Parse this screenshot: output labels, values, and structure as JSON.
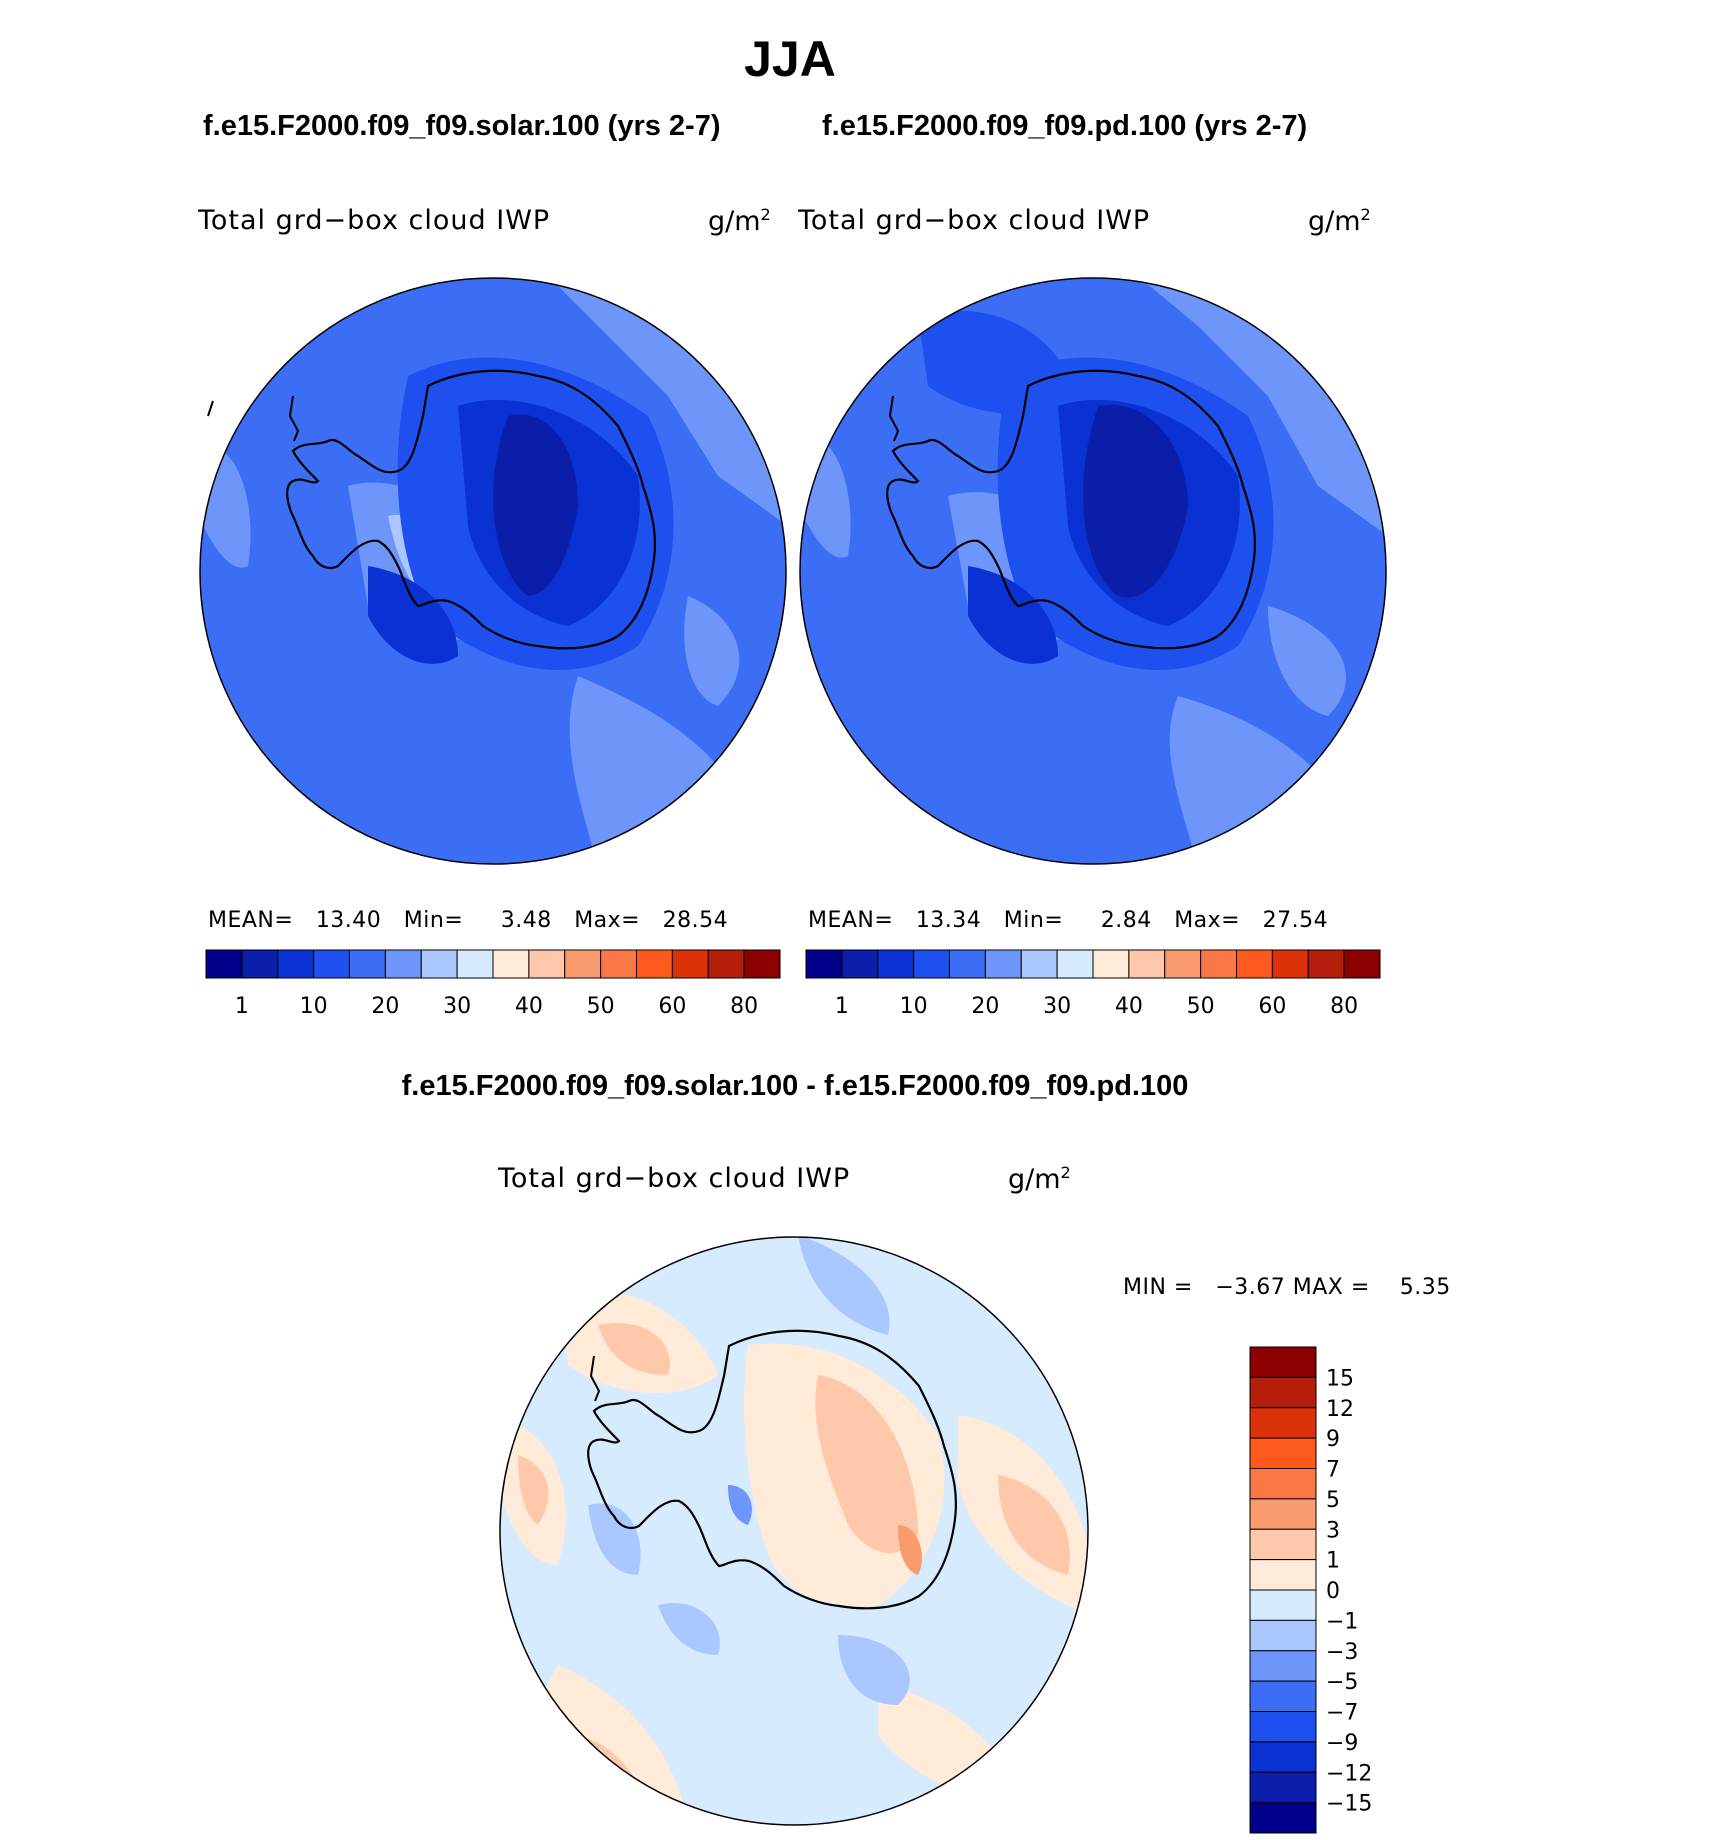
{
  "title": "JJA",
  "panels": [
    {
      "case": "f.e15.F2000.f09_f09.solar.100 (yrs 2-7)",
      "variable": "Total grd−box cloud IWP",
      "units": "g/m",
      "units_exp": "2",
      "stats": {
        "mean_label": "MEAN=",
        "mean": "13.40",
        "min_label": "Min=",
        "min": "3.48",
        "max_label": "Max=",
        "max": "28.54"
      }
    },
    {
      "case": "f.e15.F2000.f09_f09.pd.100 (yrs 2-7)",
      "variable": "Total grd−box cloud IWP",
      "units": "g/m",
      "units_exp": "2",
      "stats": {
        "mean_label": "MEAN=",
        "mean": "13.34",
        "min_label": "Min=",
        "min": "2.84",
        "max_label": "Max=",
        "max": "27.54"
      }
    }
  ],
  "diff": {
    "title": "f.e15.F2000.f09_f09.solar.100 - f.e15.F2000.f09_f09.pd.100",
    "variable": "Total grd−box cloud IWP",
    "units": "g/m",
    "units_exp": "2",
    "stats": {
      "min_label": "MIN =",
      "min": "−3.67",
      "max_label": "MAX =",
      "max": "5.35"
    }
  },
  "chart_data": [
    {
      "type": "heatmap",
      "projection": "south polar stereographic",
      "title": "f.e15.F2000.f09_f09.solar.100 (yrs 2-7)",
      "variable": "Total grd−box cloud IWP",
      "units": "g/m^2",
      "colorbar_levels": [
        1,
        10,
        20,
        30,
        40,
        50,
        60,
        80
      ],
      "colorbar_colors": [
        "#00008b",
        "#0a1eaa",
        "#0a32d2",
        "#1e50f0",
        "#3c6ef5",
        "#6e96fa",
        "#aac8ff",
        "#d7ebff",
        "#ffebd7",
        "#ffc8aa",
        "#fa9b6e",
        "#fa7846",
        "#ff5a1e",
        "#dc320a",
        "#b41e0a",
        "#8c0000"
      ],
      "mean": 13.4,
      "min": 3.48,
      "max": 28.54
    },
    {
      "type": "heatmap",
      "projection": "south polar stereographic",
      "title": "f.e15.F2000.f09_f09.pd.100 (yrs 2-7)",
      "variable": "Total grd−box cloud IWP",
      "units": "g/m^2",
      "colorbar_levels": [
        1,
        10,
        20,
        30,
        40,
        50,
        60,
        80
      ],
      "colorbar_colors": [
        "#00008b",
        "#0a1eaa",
        "#0a32d2",
        "#1e50f0",
        "#3c6ef5",
        "#6e96fa",
        "#aac8ff",
        "#d7ebff",
        "#ffebd7",
        "#ffc8aa",
        "#fa9b6e",
        "#fa7846",
        "#ff5a1e",
        "#dc320a",
        "#b41e0a",
        "#8c0000"
      ],
      "mean": 13.34,
      "min": 2.84,
      "max": 27.54
    },
    {
      "type": "heatmap",
      "projection": "south polar stereographic",
      "title": "f.e15.F2000.f09_f09.solar.100 - f.e15.F2000.f09_f09.pd.100",
      "variable": "Total grd−box cloud IWP",
      "units": "g/m^2",
      "colorbar_levels": [
        15,
        12,
        9,
        7,
        5,
        3,
        1,
        0,
        -1,
        -3,
        -5,
        -7,
        -9,
        -12,
        -15
      ],
      "colorbar_labels": [
        "15",
        "12",
        "9",
        "7",
        "5",
        "3",
        "1",
        "0",
        "−1",
        "−3",
        "−5",
        "−7",
        "−9",
        "−12",
        "−15"
      ],
      "colorbar_colors": [
        "#8c0000",
        "#b41e0a",
        "#dc320a",
        "#ff5a1e",
        "#fa7846",
        "#fa9b6e",
        "#ffc8aa",
        "#ffebd7",
        "#d7ebff",
        "#aac8ff",
        "#6e96fa",
        "#3c6ef5",
        "#1e50f0",
        "#0a32d2",
        "#0a1eaa",
        "#00008b"
      ],
      "min": -3.67,
      "max": 5.35
    }
  ]
}
